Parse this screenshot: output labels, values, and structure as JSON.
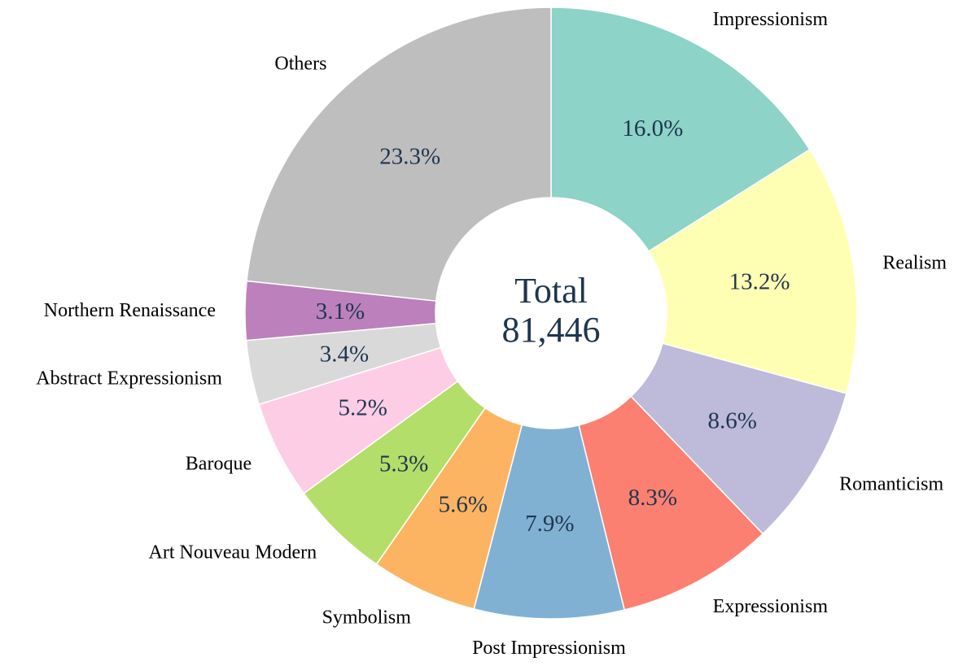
{
  "chart_data": {
    "type": "pie",
    "variant": "donut",
    "center_label": {
      "line1": "Total",
      "line2": "81,446"
    },
    "slices": [
      {
        "label": "Impressionism",
        "value": 16.0,
        "pct_label": "16.0%",
        "color": "#8dd3c7"
      },
      {
        "label": "Realism",
        "value": 13.2,
        "pct_label": "13.2%",
        "color": "#ffffb3"
      },
      {
        "label": "Romanticism",
        "value": 8.6,
        "pct_label": "8.6%",
        "color": "#bebada"
      },
      {
        "label": "Expressionism",
        "value": 8.3,
        "pct_label": "8.3%",
        "color": "#fb8072"
      },
      {
        "label": "Post Impressionism",
        "value": 7.9,
        "pct_label": "7.9%",
        "color": "#80b1d3"
      },
      {
        "label": "Symbolism",
        "value": 5.6,
        "pct_label": "5.6%",
        "color": "#fdb462"
      },
      {
        "label": "Art Nouveau Modern",
        "value": 5.3,
        "pct_label": "5.3%",
        "color": "#b3de69"
      },
      {
        "label": "Baroque",
        "value": 5.2,
        "pct_label": "5.2%",
        "color": "#fccde5"
      },
      {
        "label": "Abstract Expressionism",
        "value": 3.4,
        "pct_label": "3.4%",
        "color": "#d9d9d9"
      },
      {
        "label": "Northern Renaissance",
        "value": 3.1,
        "pct_label": "3.1%",
        "color": "#bc80bd"
      },
      {
        "label": "Others",
        "value": 23.3,
        "pct_label": "23.3%",
        "color": "#bebebe"
      }
    ],
    "start_angle": "top",
    "direction": "clockwise"
  }
}
